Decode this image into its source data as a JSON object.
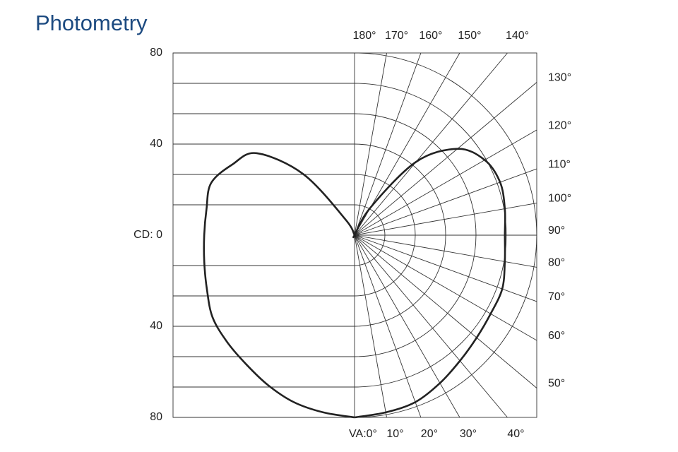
{
  "chart_data": {
    "type": "photometric",
    "title": "Photometry",
    "x": [
      0,
      10,
      20,
      30,
      40,
      50,
      60,
      70,
      80,
      90,
      100,
      110,
      120,
      130,
      140,
      150,
      160,
      170,
      180
    ],
    "series": [
      {
        "color": "#222222",
        "side": "left",
        "values": [
          80,
          79,
          78,
          76,
          74,
          73,
          72,
          69,
          67,
          66,
          66,
          67,
          62,
          56,
          35,
          8,
          0,
          0,
          0
        ]
      },
      {
        "color": "#222222",
        "side": "right",
        "values": [
          80,
          79,
          78,
          75,
          72,
          70,
          69,
          69,
          67,
          66,
          67,
          68,
          66,
          59,
          42,
          14,
          0,
          0,
          0
        ]
      }
    ],
    "rlim": [
      0,
      80
    ],
    "rings": [
      13.33,
      26.67,
      40,
      53.33,
      66.67,
      80
    ],
    "cd_ticks": [
      {
        "value": 80,
        "label": "80"
      },
      {
        "value": 40,
        "label": "40"
      },
      {
        "value": 0,
        "label": "CD: 0"
      },
      {
        "value": 40,
        "label": "40"
      },
      {
        "value": 80,
        "label": "80"
      }
    ],
    "angle_ticks": [
      {
        "value": 0,
        "label": "VA:0°"
      },
      {
        "value": 10,
        "label": "10°"
      },
      {
        "value": 20,
        "label": "20°"
      },
      {
        "value": 30,
        "label": "30°"
      },
      {
        "value": 40,
        "label": "40°"
      },
      {
        "value": 50,
        "label": "50°"
      },
      {
        "value": 60,
        "label": "60°"
      },
      {
        "value": 70,
        "label": "70°"
      },
      {
        "value": 80,
        "label": "80°"
      },
      {
        "value": 90,
        "label": "90°"
      },
      {
        "value": 100,
        "label": "100°"
      },
      {
        "value": 110,
        "label": "110°"
      },
      {
        "value": 120,
        "label": "120°"
      },
      {
        "value": 130,
        "label": "130°"
      },
      {
        "value": 140,
        "label": "140°"
      },
      {
        "value": 150,
        "label": "150°"
      },
      {
        "value": 160,
        "label": "160°"
      },
      {
        "value": 170,
        "label": "170°"
      },
      {
        "value": 180,
        "label": "180°"
      }
    ]
  }
}
